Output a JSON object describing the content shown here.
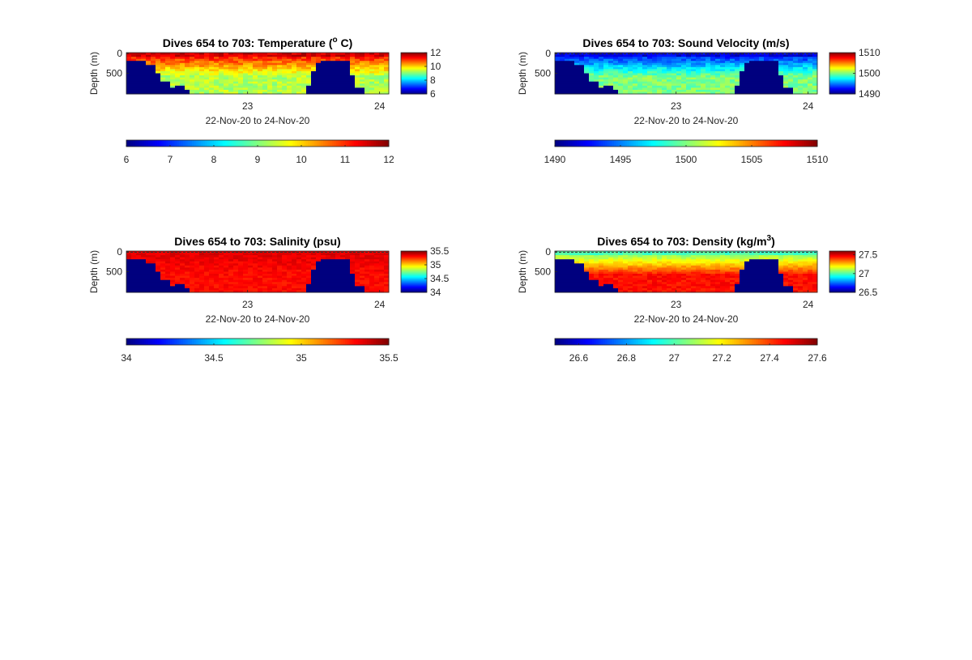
{
  "figure": {
    "background": "#ffffff",
    "colormap": "jet",
    "seabed_color": "#00007f"
  },
  "chart_data": [
    {
      "type": "heatmap",
      "title_prefix": "Dives 654 to 703: Temperature (",
      "title_super": "o",
      "title_suffix": " C)",
      "xlabel": "22-Nov-20 to 24-Nov-20",
      "ylabel": "Depth (m)",
      "x_ticks": [
        "23",
        "24"
      ],
      "y_ticks": [
        "0",
        "500"
      ],
      "cbar_ticks": [
        "6",
        "8",
        "10",
        "12"
      ],
      "hbar_ticks": [
        "6",
        "7",
        "8",
        "9",
        "10",
        "11",
        "12"
      ],
      "clim": [
        6,
        12
      ],
      "surface": 11.2,
      "deep": 9.3,
      "noise": 0.35,
      "horizontal_colorbar": true,
      "dashed_surface": false
    },
    {
      "type": "heatmap",
      "title": "Dives 654 to 703: Sound Velocity (m/s)",
      "xlabel": "22-Nov-20 to 24-Nov-20",
      "ylabel": "Depth (m)",
      "x_ticks": [
        "23",
        "24"
      ],
      "y_ticks": [
        "0",
        "500"
      ],
      "cbar_ticks": [
        "1490",
        "1500",
        "1510"
      ],
      "hbar_ticks": [
        "1490",
        "1495",
        "1500",
        "1505",
        "1510"
      ],
      "clim": [
        1490,
        1510
      ],
      "surface": 1493,
      "deep": 1500,
      "noise": 1.1,
      "horizontal_colorbar": true,
      "dashed_surface": true
    },
    {
      "type": "heatmap",
      "title": "Dives 654 to 703: Salinity (psu)",
      "xlabel": "22-Nov-20 to 24-Nov-20",
      "ylabel": "Depth (m)",
      "x_ticks": [
        "23",
        "24"
      ],
      "y_ticks": [
        "0",
        "500"
      ],
      "cbar_ticks": [
        "34",
        "34.5",
        "35",
        "35.5"
      ],
      "hbar_ticks": [
        "34",
        "34.5",
        "35",
        "35.5"
      ],
      "clim": [
        34,
        35.5
      ],
      "surface": 35.35,
      "deep": 35.3,
      "noise": 0.04,
      "horizontal_colorbar": true,
      "dashed_surface": true
    },
    {
      "type": "heatmap",
      "title_prefix": "Dives 654 to 703: Density (kg/m",
      "title_super": "3",
      "title_suffix": ")",
      "xlabel": "22-Nov-20 to 24-Nov-20",
      "ylabel": "Depth (m)",
      "x_ticks": [
        "23",
        "24"
      ],
      "y_ticks": [
        "0",
        "500"
      ],
      "cbar_ticks": [
        "26.5",
        "27",
        "27.5"
      ],
      "hbar_ticks": [
        "26.6",
        "26.8",
        "27",
        "27.2",
        "27.4",
        "27.6"
      ],
      "clim": [
        26.5,
        27.6
      ],
      "surface": 27.05,
      "deep": 27.45,
      "noise": 0.035,
      "horizontal_colorbar": true,
      "dashed_surface": true
    }
  ]
}
